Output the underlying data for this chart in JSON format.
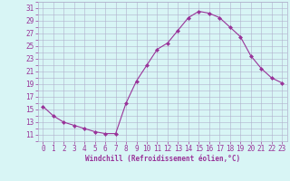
{
  "x": [
    0,
    1,
    2,
    3,
    4,
    5,
    6,
    7,
    8,
    9,
    10,
    11,
    12,
    13,
    14,
    15,
    16,
    17,
    18,
    19,
    20,
    21,
    22,
    23
  ],
  "y": [
    15.5,
    14.0,
    13.0,
    12.5,
    12.0,
    11.5,
    11.2,
    11.2,
    16.0,
    19.5,
    22.0,
    24.5,
    25.5,
    27.5,
    29.5,
    30.5,
    30.2,
    29.5,
    28.0,
    26.5,
    23.5,
    21.5,
    20.0,
    19.2
  ],
  "line_color": "#993399",
  "marker": "D",
  "marker_size": 2.0,
  "bg_color": "#d8f5f5",
  "grid_color": "#b0b0cc",
  "xlabel": "Windchill (Refroidissement éolien,°C)",
  "xlabel_color": "#993399",
  "tick_color": "#993399",
  "ylim": [
    10,
    32
  ],
  "yticks": [
    11,
    13,
    15,
    17,
    19,
    21,
    23,
    25,
    27,
    29,
    31
  ],
  "xticks": [
    0,
    1,
    2,
    3,
    4,
    5,
    6,
    7,
    8,
    9,
    10,
    11,
    12,
    13,
    14,
    15,
    16,
    17,
    18,
    19,
    20,
    21,
    22,
    23
  ],
  "xlim": [
    -0.5,
    23.5
  ],
  "tick_fontsize": 5.5,
  "xlabel_fontsize": 5.5
}
